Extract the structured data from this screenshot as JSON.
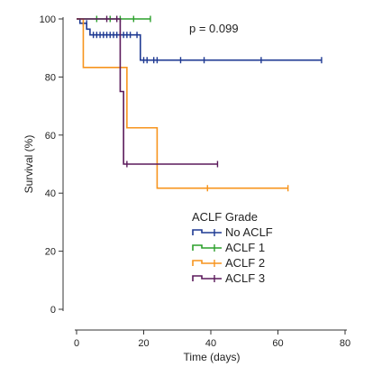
{
  "chart_data": {
    "type": "line",
    "title": "",
    "xlabel": "Time (days)",
    "ylabel": "Survival (%)",
    "xlim": [
      0,
      80
    ],
    "ylim": [
      0,
      100
    ],
    "xticks": [
      "0",
      "20",
      "40",
      "60",
      "80"
    ],
    "yticks": [
      "0",
      "20",
      "40",
      "60",
      "80",
      "100"
    ],
    "grid": false,
    "legend_title": "ACLF Grade",
    "legend_position": "center",
    "annotation": "p = 0.099",
    "series": [
      {
        "name": "No ACLF",
        "color": "#1f3a93",
        "steps": [
          [
            0,
            100
          ],
          [
            1,
            98.5
          ],
          [
            3,
            96.5
          ],
          [
            4,
            94.5
          ],
          [
            19,
            85.8
          ],
          [
            73,
            85.8
          ]
        ],
        "censor": [
          [
            2,
            98.5
          ],
          [
            3,
            98.5
          ],
          [
            5,
            94.5
          ],
          [
            6,
            94.5
          ],
          [
            7,
            94.5
          ],
          [
            8,
            94.5
          ],
          [
            9,
            94.5
          ],
          [
            10,
            94.5
          ],
          [
            11,
            94.5
          ],
          [
            12,
            94.5
          ],
          [
            13,
            94.5
          ],
          [
            14,
            94.5
          ],
          [
            15,
            94.5
          ],
          [
            16,
            94.5
          ],
          [
            18,
            94.5
          ],
          [
            20,
            85.8
          ],
          [
            21,
            85.8
          ],
          [
            23,
            85.8
          ],
          [
            24,
            85.8
          ],
          [
            31,
            85.8
          ],
          [
            38,
            85.8
          ],
          [
            55,
            85.8
          ],
          [
            73,
            85.8
          ]
        ]
      },
      {
        "name": "ACLF 1",
        "color": "#2ca02c",
        "steps": [
          [
            0,
            100
          ],
          [
            22,
            100
          ]
        ],
        "censor": [
          [
            6,
            100
          ],
          [
            10,
            100
          ],
          [
            13,
            100
          ],
          [
            17,
            100
          ],
          [
            22,
            100
          ]
        ]
      },
      {
        "name": "ACLF 2",
        "color": "#f7941d",
        "steps": [
          [
            0,
            100
          ],
          [
            2,
            83.3
          ],
          [
            15,
            62.5
          ],
          [
            24,
            41.7
          ],
          [
            63,
            41.7
          ]
        ],
        "censor": [
          [
            39,
            41.7
          ],
          [
            63,
            41.7
          ]
        ]
      },
      {
        "name": "ACLF 3",
        "color": "#5b1a5b",
        "steps": [
          [
            0,
            100
          ],
          [
            13,
            75
          ],
          [
            14,
            50
          ],
          [
            42,
            50
          ]
        ],
        "censor": [
          [
            9,
            100
          ],
          [
            12,
            100
          ],
          [
            15,
            50
          ],
          [
            42,
            50
          ]
        ]
      }
    ]
  }
}
